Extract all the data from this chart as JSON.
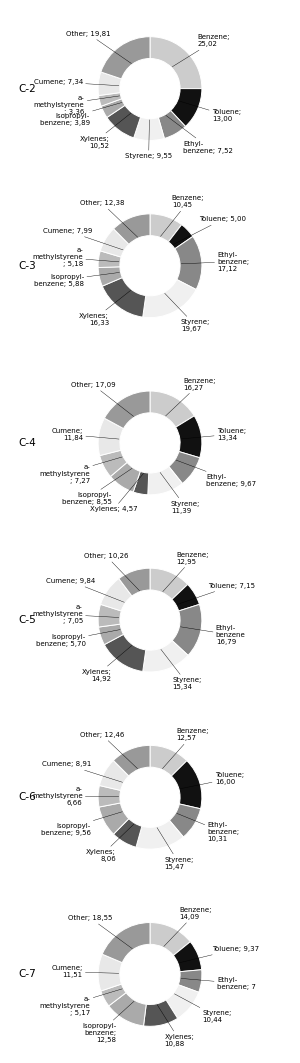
{
  "charts": [
    {
      "label": "C-2",
      "segments": [
        {
          "name": "Benzene;\n25,02",
          "value": 25.02,
          "color": "#cccccc"
        },
        {
          "name": "Toluene;\n13,00",
          "value": 13.0,
          "color": "#111111"
        },
        {
          "name": "Ethyl-\nbenzene; 7,52",
          "value": 7.52,
          "color": "#888888"
        },
        {
          "name": "Styrene; 9,55",
          "value": 9.55,
          "color": "#f0f0f0"
        },
        {
          "name": "Xylenes;\n10,52",
          "value": 10.52,
          "color": "#555555"
        },
        {
          "name": "Isopropyl-\nbenzene; 3,89",
          "value": 3.89,
          "color": "#aaaaaa"
        },
        {
          "name": "a-\nmethylstyrene\n; 3,36",
          "value": 3.36,
          "color": "#bbbbbb"
        },
        {
          "name": "Cumene; 7,34",
          "value": 7.34,
          "color": "#e8e8e8"
        },
        {
          "name": "Other; 19,81",
          "value": 19.81,
          "color": "#999999"
        }
      ]
    },
    {
      "label": "C-3",
      "segments": [
        {
          "name": "Benzene;\n10,45",
          "value": 10.45,
          "color": "#cccccc"
        },
        {
          "name": "Toluene; 5,00",
          "value": 5.0,
          "color": "#111111"
        },
        {
          "name": "Ethyl-\nbenzene;\n17,12",
          "value": 17.12,
          "color": "#888888"
        },
        {
          "name": "Styrene;\n19,67",
          "value": 19.67,
          "color": "#f0f0f0"
        },
        {
          "name": "Xylenes;\n16,33",
          "value": 16.33,
          "color": "#555555"
        },
        {
          "name": "Isopropyl-\nbenzene; 5,88",
          "value": 5.88,
          "color": "#aaaaaa"
        },
        {
          "name": "a-\nmethylstyrene\n; 5,18",
          "value": 5.18,
          "color": "#bbbbbb"
        },
        {
          "name": "Cumene; 7,99",
          "value": 7.99,
          "color": "#e8e8e8"
        },
        {
          "name": "Other; 12,38",
          "value": 12.38,
          "color": "#999999"
        }
      ]
    },
    {
      "label": "C-4",
      "segments": [
        {
          "name": "Benzene;\n16,27",
          "value": 16.27,
          "color": "#cccccc"
        },
        {
          "name": "Toluene;\n13,34",
          "value": 13.34,
          "color": "#111111"
        },
        {
          "name": "Ethyl-\nbenzene; 9,67",
          "value": 9.67,
          "color": "#888888"
        },
        {
          "name": "Styrene;\n11,39",
          "value": 11.39,
          "color": "#f0f0f0"
        },
        {
          "name": "Xylenes; 4,57",
          "value": 4.57,
          "color": "#555555"
        },
        {
          "name": "Isopropyl-\nbenzene; 8,55",
          "value": 8.55,
          "color": "#aaaaaa"
        },
        {
          "name": "a-\nmethylstyrene\n; 7,27",
          "value": 7.27,
          "color": "#bbbbbb"
        },
        {
          "name": "Cumene;\n11,84",
          "value": 11.84,
          "color": "#e8e8e8"
        },
        {
          "name": "Other; 17,09",
          "value": 17.09,
          "color": "#999999"
        }
      ]
    },
    {
      "label": "C-5",
      "segments": [
        {
          "name": "Benzene;\n12,95",
          "value": 12.95,
          "color": "#cccccc"
        },
        {
          "name": "Toluene; 7,15",
          "value": 7.15,
          "color": "#111111"
        },
        {
          "name": "Ethyl-\nbenzene\n16,79",
          "value": 16.79,
          "color": "#888888"
        },
        {
          "name": "Styrene;\n15,34",
          "value": 15.34,
          "color": "#f0f0f0"
        },
        {
          "name": "Xylenes;\n14,92",
          "value": 14.92,
          "color": "#555555"
        },
        {
          "name": "Isopropyl-\nbenzene; 5,70",
          "value": 5.7,
          "color": "#aaaaaa"
        },
        {
          "name": "a-\nmethylstyrene\n; 7,05",
          "value": 7.05,
          "color": "#bbbbbb"
        },
        {
          "name": "Cumene; 9,84",
          "value": 9.84,
          "color": "#e8e8e8"
        },
        {
          "name": "Other; 10,26",
          "value": 10.26,
          "color": "#999999"
        }
      ]
    },
    {
      "label": "C-6",
      "segments": [
        {
          "name": "Benzene;\n12,57",
          "value": 12.57,
          "color": "#cccccc"
        },
        {
          "name": "Toluene;\n16,00",
          "value": 16.0,
          "color": "#111111"
        },
        {
          "name": "Ethyl-\nbenzene;\n10,31",
          "value": 10.31,
          "color": "#888888"
        },
        {
          "name": "Styrene;\n15,47",
          "value": 15.47,
          "color": "#f0f0f0"
        },
        {
          "name": "Xylenes;\n8,06",
          "value": 8.06,
          "color": "#555555"
        },
        {
          "name": "Isopropyl-\nbenzene; 9,56",
          "value": 9.56,
          "color": "#aaaaaa"
        },
        {
          "name": "a-\nmethylstyrene\n6,66",
          "value": 6.66,
          "color": "#bbbbbb"
        },
        {
          "name": "Cumene; 8,91",
          "value": 8.91,
          "color": "#e8e8e8"
        },
        {
          "name": "Other; 12,46",
          "value": 12.46,
          "color": "#999999"
        }
      ]
    },
    {
      "label": "C-7",
      "segments": [
        {
          "name": "Benzene;\n14,09",
          "value": 14.09,
          "color": "#cccccc"
        },
        {
          "name": "Toluene; 9,37",
          "value": 9.37,
          "color": "#111111"
        },
        {
          "name": "Ethyl-\nbenzene; 7",
          "value": 7.0,
          "color": "#888888"
        },
        {
          "name": "Styrene;\n10,44",
          "value": 10.44,
          "color": "#f0f0f0"
        },
        {
          "name": "Xylenes;\n10,88",
          "value": 10.88,
          "color": "#555555"
        },
        {
          "name": "Isopropyl-\nbenzene;\n12,58",
          "value": 12.58,
          "color": "#aaaaaa"
        },
        {
          "name": "a-\nmethylstyrene\n; 5,17",
          "value": 5.17,
          "color": "#bbbbbb"
        },
        {
          "name": "Cumene;\n11,51",
          "value": 11.51,
          "color": "#e8e8e8"
        },
        {
          "name": "Other; 18,55",
          "value": 18.55,
          "color": "#999999"
        }
      ]
    }
  ],
  "bg_color": "#ffffff",
  "label_fontsize": 5.0,
  "chart_label_fontsize": 7.5
}
